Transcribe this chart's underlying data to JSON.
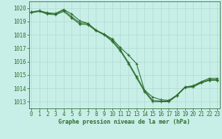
{
  "title": "Graphe pression niveau de la mer (hPa)",
  "background_color": "#c8eee8",
  "grid_color": "#b0d8d0",
  "line_color": "#2d6e2d",
  "xlim": [
    -0.3,
    23.3
  ],
  "ylim": [
    1012.5,
    1020.5
  ],
  "yticks": [
    1013,
    1014,
    1015,
    1016,
    1017,
    1018,
    1019,
    1020
  ],
  "xticks": [
    0,
    1,
    2,
    3,
    4,
    5,
    6,
    7,
    8,
    9,
    10,
    11,
    12,
    13,
    14,
    15,
    16,
    17,
    18,
    19,
    20,
    21,
    22,
    23
  ],
  "line1_y": [
    1019.7,
    1019.8,
    1019.65,
    1019.6,
    1019.9,
    1019.55,
    1019.05,
    1018.85,
    1018.35,
    1018.05,
    1017.7,
    1017.05,
    1016.5,
    1015.85,
    1013.85,
    1013.35,
    1013.15,
    1013.1,
    1013.5,
    1014.1,
    1014.2,
    1014.5,
    1014.75,
    1014.75
  ],
  "line2_y": [
    1019.7,
    1019.8,
    1019.6,
    1019.55,
    1019.85,
    1019.35,
    1018.9,
    1018.85,
    1018.35,
    1018.05,
    1017.6,
    1016.9,
    1015.95,
    1014.9,
    1013.85,
    1013.1,
    1013.05,
    1013.05,
    1013.5,
    1014.1,
    1014.15,
    1014.45,
    1014.65,
    1014.65
  ],
  "line3_y": [
    1019.65,
    1019.75,
    1019.55,
    1019.5,
    1019.75,
    1019.25,
    1018.8,
    1018.75,
    1018.3,
    1018.0,
    1017.5,
    1016.8,
    1015.85,
    1014.8,
    1013.75,
    1013.0,
    1013.0,
    1013.0,
    1013.45,
    1014.05,
    1014.1,
    1014.4,
    1014.6,
    1014.6
  ],
  "tick_fontsize": 5.5,
  "xlabel_fontsize": 6.0
}
